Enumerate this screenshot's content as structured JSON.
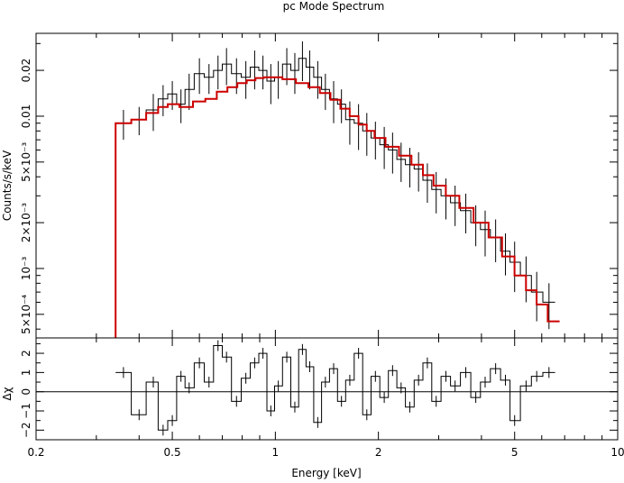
{
  "chart_data": [
    {
      "type": "line",
      "panel": "spectrum",
      "title": "pc Mode Spectrum",
      "xlabel": "Energy [keV]",
      "ylabel": "Counts/s/keV",
      "xscale": "log",
      "yscale": "log",
      "xlim": [
        0.2,
        10
      ],
      "ylim": [
        0.00035,
        0.035
      ],
      "x_ticks": [
        "0.2",
        "0.5",
        "1",
        "2",
        "5",
        "10"
      ],
      "y_ticks": [
        {
          "value": 0.0005,
          "label": "5×10⁻⁴"
        },
        {
          "value": 0.001,
          "label": "10⁻³"
        },
        {
          "value": 0.002,
          "label": "2×10⁻³"
        },
        {
          "value": 0.005,
          "label": "5×10⁻³"
        },
        {
          "value": 0.01,
          "label": "0.01"
        },
        {
          "value": 0.02,
          "label": "0.02"
        }
      ],
      "series": [
        {
          "color": "#000000",
          "style": "step-with-error-bars",
          "x": [
            0.36,
            0.4,
            0.44,
            0.47,
            0.5,
            0.53,
            0.56,
            0.6,
            0.64,
            0.68,
            0.72,
            0.77,
            0.82,
            0.87,
            0.92,
            0.97,
            1.02,
            1.08,
            1.14,
            1.2,
            1.26,
            1.33,
            1.4,
            1.48,
            1.56,
            1.65,
            1.75,
            1.85,
            1.96,
            2.08,
            2.2,
            2.33,
            2.47,
            2.62,
            2.78,
            2.95,
            3.15,
            3.35,
            3.6,
            3.85,
            4.1,
            4.4,
            4.7,
            5.0,
            5.4,
            5.8,
            6.3
          ],
          "y": [
            0.009,
            0.0095,
            0.011,
            0.013,
            0.014,
            0.012,
            0.015,
            0.019,
            0.018,
            0.02,
            0.022,
            0.019,
            0.018,
            0.021,
            0.02,
            0.017,
            0.018,
            0.022,
            0.02,
            0.024,
            0.021,
            0.018,
            0.015,
            0.013,
            0.012,
            0.0095,
            0.009,
            0.008,
            0.0072,
            0.0065,
            0.006,
            0.0052,
            0.0048,
            0.0045,
            0.0038,
            0.0033,
            0.003,
            0.0027,
            0.0024,
            0.002,
            0.0018,
            0.0016,
            0.0013,
            0.0011,
            0.0009,
            0.0007,
            0.0006
          ],
          "yerr": [
            0.002,
            0.002,
            0.003,
            0.003,
            0.003,
            0.003,
            0.004,
            0.005,
            0.004,
            0.005,
            0.006,
            0.005,
            0.005,
            0.006,
            0.005,
            0.005,
            0.005,
            0.006,
            0.006,
            0.007,
            0.006,
            0.005,
            0.004,
            0.004,
            0.003,
            0.003,
            0.003,
            0.0025,
            0.002,
            0.002,
            0.0018,
            0.0015,
            0.0014,
            0.0013,
            0.0011,
            0.001,
            0.0009,
            0.0008,
            0.0007,
            0.0006,
            0.0006,
            0.0005,
            0.0004,
            0.0004,
            0.0003,
            0.00025,
            0.0002
          ]
        },
        {
          "color": "#cc0000",
          "style": "step",
          "x": [
            0.36,
            0.4,
            0.44,
            0.47,
            0.5,
            0.55,
            0.6,
            0.65,
            0.7,
            0.75,
            0.8,
            0.85,
            0.9,
            0.95,
            1.0,
            1.1,
            1.2,
            1.3,
            1.4,
            1.5,
            1.6,
            1.7,
            1.8,
            1.9,
            2.0,
            2.2,
            2.4,
            2.6,
            2.8,
            3.0,
            3.3,
            3.6,
            4.0,
            4.4,
            4.8,
            5.2,
            5.6,
            6.0,
            6.5
          ],
          "y": [
            0.009,
            0.0095,
            0.0105,
            0.0115,
            0.012,
            0.0115,
            0.0125,
            0.013,
            0.0145,
            0.0155,
            0.0165,
            0.0172,
            0.0178,
            0.018,
            0.018,
            0.0175,
            0.0165,
            0.0155,
            0.0142,
            0.0128,
            0.0112,
            0.01,
            0.0088,
            0.008,
            0.0072,
            0.0063,
            0.0055,
            0.0048,
            0.0041,
            0.0035,
            0.003,
            0.0025,
            0.002,
            0.0016,
            0.0012,
            0.0009,
            0.00072,
            0.00058,
            0.00045
          ]
        }
      ]
    },
    {
      "type": "line",
      "panel": "residuals",
      "xlabel": "Energy [keV]",
      "ylabel": "Δχ",
      "xscale": "log",
      "xlim": [
        0.2,
        10
      ],
      "ylim": [
        -2.5,
        2.8
      ],
      "y_ticks": [
        {
          "value": -2,
          "label": "−2"
        },
        {
          "value": -1,
          "label": "−1"
        },
        {
          "value": 0,
          "label": "0"
        },
        {
          "value": 1,
          "label": "1"
        },
        {
          "value": 2,
          "label": "2"
        }
      ],
      "zero_line": true,
      "series": [
        {
          "color": "#000000",
          "style": "step",
          "x": [
            0.36,
            0.4,
            0.44,
            0.47,
            0.5,
            0.53,
            0.56,
            0.6,
            0.64,
            0.68,
            0.72,
            0.77,
            0.82,
            0.87,
            0.92,
            0.97,
            1.02,
            1.08,
            1.14,
            1.2,
            1.26,
            1.33,
            1.4,
            1.48,
            1.56,
            1.65,
            1.75,
            1.85,
            1.96,
            2.08,
            2.2,
            2.33,
            2.47,
            2.62,
            2.78,
            2.95,
            3.15,
            3.35,
            3.6,
            3.85,
            4.1,
            4.4,
            4.7,
            5.0,
            5.4,
            5.8,
            6.3
          ],
          "y": [
            1.0,
            -1.2,
            0.5,
            -2.0,
            -1.5,
            0.8,
            0.2,
            1.5,
            0.5,
            2.4,
            1.8,
            -0.5,
            0.7,
            1.5,
            2.0,
            -1.0,
            0.3,
            1.8,
            -0.8,
            2.2,
            1.3,
            -1.6,
            0.5,
            1.2,
            -0.5,
            0.6,
            2.0,
            -1.2,
            0.8,
            -0.3,
            1.1,
            0.2,
            -0.8,
            0.6,
            1.5,
            -0.5,
            0.8,
            0.3,
            1.0,
            -0.3,
            0.5,
            1.2,
            0.6,
            -1.5,
            0.3,
            0.8,
            1.0
          ]
        }
      ]
    }
  ]
}
